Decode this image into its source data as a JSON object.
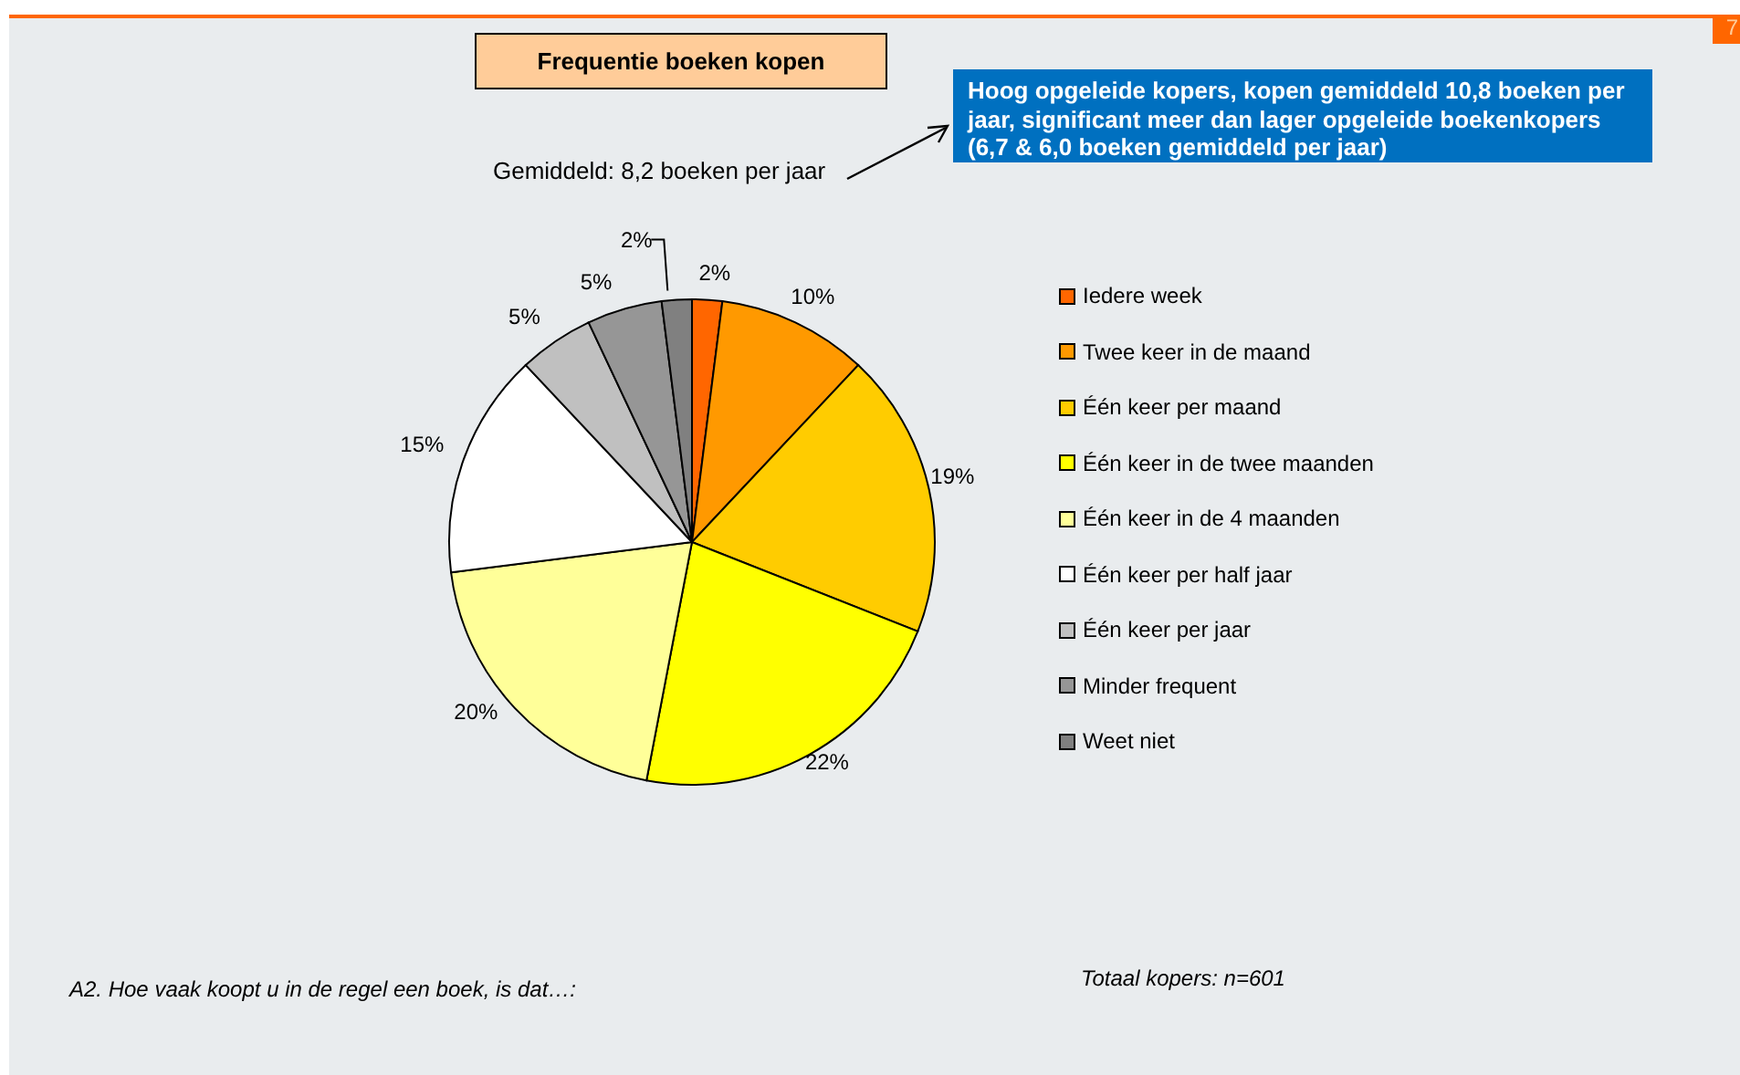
{
  "chart_data": {
    "type": "pie",
    "title": "Frequentie boeken kopen",
    "categories": [
      "Iedere week",
      "Twee keer in de maand",
      "Één keer per maand",
      "Één keer in de twee maanden",
      "Één keer in de 4 maanden",
      "Één keer per half jaar",
      "Één keer per jaar",
      "Minder frequent",
      "Weet niet"
    ],
    "values": [
      2,
      10,
      19,
      22,
      20,
      15,
      5,
      5,
      2
    ],
    "value_labels": [
      "2%",
      "10%",
      "19%",
      "22%",
      "20%",
      "15%",
      "5%",
      "5%",
      "2%"
    ],
    "colors": [
      "#ff6600",
      "#ff9900",
      "#ffcc00",
      "#ffff00",
      "#ffff99",
      "#ffffff",
      "#c0c0c0",
      "#969696",
      "#808080"
    ],
    "legend": "right",
    "annotations": [
      "Gemiddeld: 8,2 boeken per jaar",
      "Hoog opgeleide kopers, kopen gemiddeld 10,8 boeken per jaar, significant meer dan lager opgeleide boekenkopers (6,7 & 6,0 boeken gemiddeld per jaar)",
      "A2. Hoe vaak koopt u in de regel een boek, is dat…:",
      "Totaal kopers: n=601",
      "7"
    ]
  }
}
